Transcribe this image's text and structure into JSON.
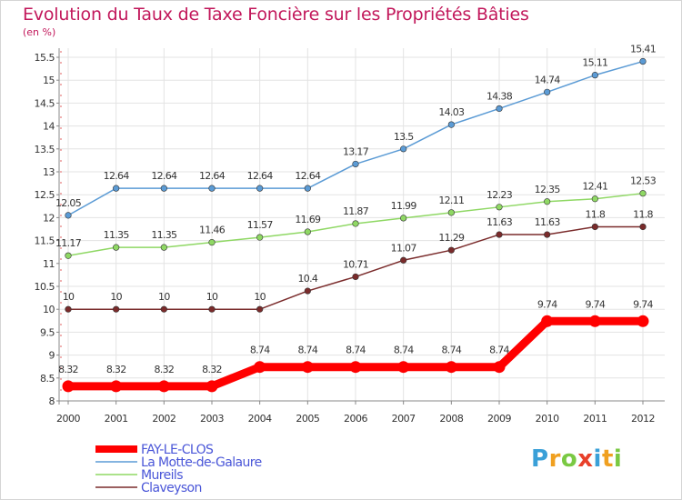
{
  "title": "Evolution du Taux de Taxe Foncière sur les Propriétés Bâties",
  "subtitle": "(en %)",
  "logo_text": "Proxiti",
  "chart_data": {
    "type": "line",
    "title": "Evolution du Taux de Taxe Foncière sur les Propriétés Bâties",
    "ylabel": "(en %)",
    "x": [
      "2000",
      "2001",
      "2002",
      "2003",
      "2004",
      "2005",
      "2006",
      "2007",
      "2008",
      "2009",
      "2010",
      "2011",
      "2012"
    ],
    "ylim": [
      8,
      15.5
    ],
    "yticks": [
      "8",
      "8.5",
      "9",
      "9.5",
      "10",
      "10.5",
      "11",
      "11.5",
      "12",
      "12.5",
      "13",
      "13.5",
      "14",
      "14.5",
      "15",
      "15.5"
    ],
    "grid": true,
    "legend": "bottom",
    "series": [
      {
        "name": "FAY-LE-CLOS",
        "color": "#ff0000",
        "values": [
          8.32,
          8.32,
          8.32,
          8.32,
          8.74,
          8.74,
          8.74,
          8.74,
          8.74,
          8.74,
          9.74,
          9.74,
          9.74
        ],
        "labels": [
          "8.32",
          "8.32",
          "8.32",
          "8.32",
          "8.74",
          "8.74",
          "8.74",
          "8.74",
          "8.74",
          "8.74",
          "9.74",
          "9.74",
          "9.74"
        ]
      },
      {
        "name": "La Motte-de-Galaure",
        "color": "#5b9bd5",
        "values": [
          12.05,
          12.64,
          12.64,
          12.64,
          12.64,
          12.64,
          13.17,
          13.5,
          14.03,
          14.38,
          14.74,
          15.11,
          15.41
        ],
        "labels": [
          "12.05",
          "12.64",
          "12.64",
          "12.64",
          "12.64",
          "12.64",
          "13.17",
          "13.5",
          "14.03",
          "14.38",
          "14.74",
          "15.11",
          "15.41"
        ]
      },
      {
        "name": "Mureils",
        "color": "#8fd864",
        "values": [
          11.17,
          11.35,
          11.35,
          11.46,
          11.57,
          11.69,
          11.87,
          11.99,
          12.11,
          12.23,
          12.35,
          12.41,
          12.53
        ],
        "labels": [
          "11.17",
          "11.35",
          "11.35",
          "11.46",
          "11.57",
          "11.69",
          "11.87",
          "11.99",
          "12.11",
          "12.23",
          "12.35",
          "12.41",
          "12.53"
        ]
      },
      {
        "name": "Claveyson",
        "color": "#7a2b2b",
        "values": [
          10,
          10,
          10,
          10,
          10,
          10.4,
          10.71,
          11.07,
          11.29,
          11.63,
          11.63,
          11.8,
          11.8
        ],
        "labels": [
          "10",
          "10",
          "10",
          "10",
          "10",
          "10.4",
          "10.71",
          "11.07",
          "11.29",
          "11.63",
          "11.63",
          "11.8",
          "11.8"
        ]
      }
    ]
  }
}
